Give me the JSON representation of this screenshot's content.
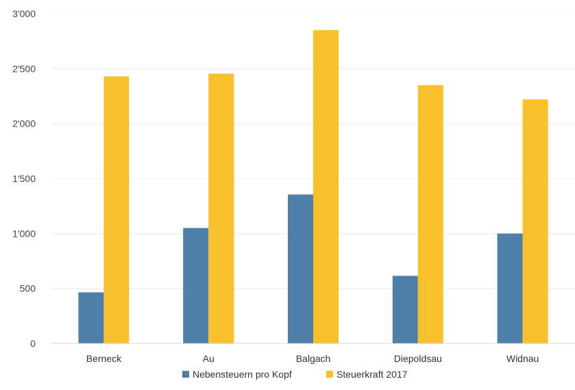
{
  "chart_data": {
    "type": "bar",
    "categories": [
      "Berneck",
      "Au",
      "Balgach",
      "Diepoldsau",
      "Widnau"
    ],
    "series": [
      {
        "name": "Nebensteuern pro Kopf",
        "color": "#4e7fa8",
        "values": [
          465,
          1050,
          1355,
          615,
          1000
        ]
      },
      {
        "name": "Steuerkraft 2017",
        "color": "#f9c02b",
        "values": [
          2430,
          2455,
          2850,
          2350,
          2220
        ]
      }
    ],
    "ylim": [
      0,
      3000
    ],
    "yticks": [
      0,
      500,
      1000,
      1500,
      2000,
      2500,
      3000
    ],
    "ytick_labels": [
      "0",
      "500",
      "1'000",
      "1'500",
      "2'000",
      "2'500",
      "3'000"
    ],
    "grid": true,
    "legend_position": "bottom-center",
    "title": "",
    "xlabel": "",
    "ylabel": ""
  }
}
